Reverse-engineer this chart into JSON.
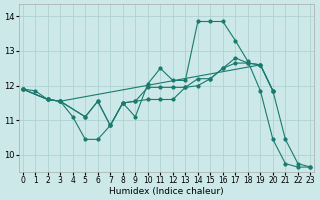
{
  "xlabel": "Humidex (Indice chaleur)",
  "xlim": [
    -0.3,
    23.3
  ],
  "ylim": [
    9.5,
    14.35
  ],
  "yticks": [
    10,
    11,
    12,
    13,
    14
  ],
  "xticks": [
    0,
    1,
    2,
    3,
    4,
    5,
    6,
    7,
    8,
    9,
    10,
    11,
    12,
    13,
    14,
    15,
    16,
    17,
    18,
    19,
    20,
    21,
    22,
    23
  ],
  "bg_color": "#cce8e8",
  "grid_color": "#aacece",
  "line_color": "#1a7a6e",
  "line1_x": [
    0,
    1,
    2,
    3,
    4,
    5,
    6,
    7,
    8,
    9,
    10,
    11,
    12,
    13,
    14,
    15,
    16,
    17,
    18,
    19,
    20,
    21,
    22,
    23
  ],
  "line1_y": [
    11.9,
    11.85,
    11.6,
    11.55,
    11.1,
    10.45,
    10.45,
    10.85,
    11.5,
    11.1,
    12.05,
    12.5,
    12.15,
    12.15,
    13.85,
    13.85,
    13.85,
    13.3,
    12.7,
    11.85,
    10.45,
    9.75,
    9.65,
    9.65
  ],
  "line2_x": [
    0,
    2,
    3,
    5,
    6,
    7,
    8,
    9,
    10,
    11,
    12,
    13,
    14,
    15,
    16,
    17,
    18,
    19,
    20
  ],
  "line2_y": [
    11.9,
    11.6,
    11.55,
    11.1,
    11.55,
    10.85,
    11.5,
    11.55,
    11.95,
    11.95,
    11.95,
    11.95,
    12.2,
    12.2,
    12.5,
    12.8,
    12.65,
    12.6,
    11.85
  ],
  "line3_x": [
    0,
    2,
    3,
    5,
    6,
    7,
    8,
    9,
    10,
    11,
    12,
    13,
    14,
    15,
    16,
    17,
    18,
    19,
    20
  ],
  "line3_y": [
    11.9,
    11.6,
    11.55,
    11.1,
    11.55,
    10.85,
    11.5,
    11.55,
    11.6,
    11.6,
    11.6,
    11.95,
    12.0,
    12.2,
    12.5,
    12.65,
    12.65,
    12.6,
    11.85
  ],
  "line4_x": [
    0,
    2,
    3,
    19,
    20,
    21,
    22,
    23
  ],
  "line4_y": [
    11.9,
    11.6,
    11.55,
    12.6,
    11.85,
    10.45,
    9.75,
    9.65
  ]
}
